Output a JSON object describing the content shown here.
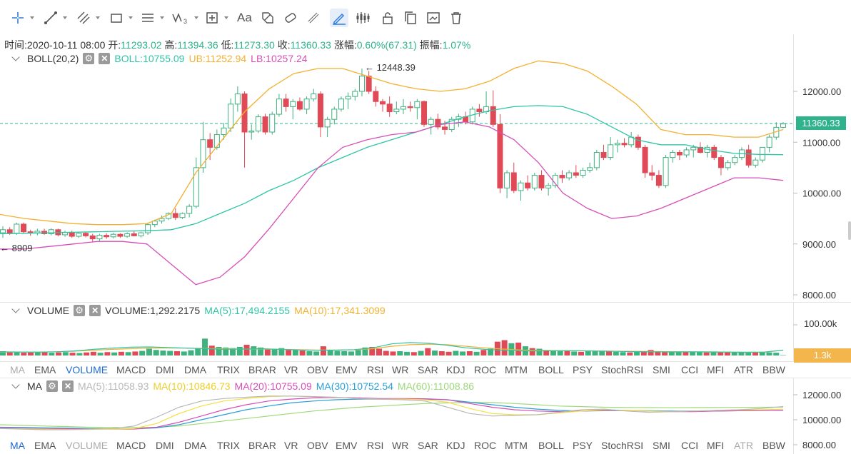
{
  "toolbar": {
    "tools": [
      {
        "name": "crosshair-tool-icon",
        "caret": true
      },
      {
        "name": "trend-line-tool-icon",
        "caret": true
      },
      {
        "name": "fib-tool-icon",
        "caret": true
      },
      {
        "name": "rectangle-tool-icon",
        "caret": true
      },
      {
        "name": "horizontal-lines-tool-icon",
        "caret": true
      },
      {
        "name": "wave-tool-icon",
        "caret": true
      },
      {
        "name": "measure-tool-icon",
        "caret": true
      },
      {
        "name": "text-tool-icon",
        "caret": false
      },
      {
        "name": "pattern-tool-icon",
        "caret": false
      },
      {
        "name": "magnet-tool-icon",
        "caret": false
      },
      {
        "name": "ruler-tool-icon",
        "caret": false
      },
      {
        "name": "draw-tool-icon",
        "caret": false
      },
      {
        "name": "chart-type-icon",
        "caret": false
      },
      {
        "name": "lock-icon",
        "caret": false
      },
      {
        "name": "copy-icon",
        "caret": false
      },
      {
        "name": "screenshot-icon",
        "caret": false
      },
      {
        "name": "delete-icon",
        "caret": false
      }
    ],
    "text_tool_label": "Aa"
  },
  "ohlc": {
    "time_label": "时间:",
    "time": "2020-10-11 08:00",
    "open_label": "开:",
    "open": "11293.02",
    "high_label": "高:",
    "high": "11394.36",
    "low_label": "低:",
    "low": "11273.30",
    "close_label": "收:",
    "close": "11360.33",
    "change_label": "涨幅:",
    "change": "0.60%(67.31)",
    "amp_label": "振幅:",
    "amp": "1.07%"
  },
  "boll_pane": {
    "name": "BOLL(20,2)",
    "boll": "BOLL:10755.09",
    "ub": "UB:11252.94",
    "lb": "LB:10257.24",
    "colors": {
      "boll": "#2fc4a6",
      "ub": "#f2b130",
      "lb": "#d64fb8"
    },
    "axis_ticks": [
      "12000.00",
      "11000.00",
      "10000.00",
      "9000.00",
      "8000.00"
    ],
    "high_marker": "12448.39",
    "low_marker": "8909",
    "last_price": "11360.33"
  },
  "volume_pane": {
    "name": "VOLUME",
    "volume": "VOLUME:1,292.2175",
    "ma5": "MA(5):17,494.2155",
    "ma10": "MA(10):17,341.3099",
    "colors": {
      "ma5": "#2fc4a6",
      "ma10": "#f2b130"
    },
    "axis_tick": "100.00k",
    "current": "1.3k"
  },
  "indicator_tabs_1": {
    "items": [
      "MA",
      "EMA",
      "VOLUME",
      "MACD",
      "DMI",
      "DMA",
      "TRIX",
      "BRAR",
      "VR",
      "OBV",
      "EMV",
      "RSI",
      "WR",
      "SAR",
      "KDJ",
      "ROC",
      "MTM",
      "BOLL",
      "PSY",
      "StochRSI",
      "SMI",
      "CCI",
      "MFI",
      "ATR",
      "BBW"
    ],
    "active": "VOLUME"
  },
  "ma_pane": {
    "name": "MA",
    "ma5": "MA(5):11058.93",
    "ma10": "MA(10):10846.73",
    "ma20": "MA(20):10755.09",
    "ma30": "MA(30):10752.54",
    "ma60": "MA(60):11008.86",
    "colors": {
      "ma5": "#b8b8b8",
      "ma10": "#f5e040",
      "ma20": "#d64fb8",
      "ma30": "#2a9fd6",
      "ma60": "#9ed97a"
    },
    "axis_ticks": [
      "12000.00",
      "10000.00",
      "8000.00"
    ]
  },
  "indicator_tabs_2": {
    "items": [
      "MA",
      "EMA",
      "VOLUME",
      "MACD",
      "DMI",
      "DMA",
      "TRIX",
      "BRAR",
      "VR",
      "OBV",
      "EMV",
      "RSI",
      "WR",
      "SAR",
      "KDJ",
      "ROC",
      "MTM",
      "BOLL",
      "PSY",
      "StochRSI",
      "SMI",
      "CCI",
      "MFI",
      "ATR",
      "BBW"
    ],
    "active": "MA"
  },
  "chart_data": {
    "type": "candlestick",
    "price_axis": {
      "min": 8000,
      "max": 12000,
      "ticks": [
        12000,
        11000,
        10000,
        9000,
        8000
      ]
    },
    "candles_ohlc": [
      [
        9220,
        9350,
        9120,
        9280
      ],
      [
        9280,
        9330,
        9180,
        9210
      ],
      [
        9210,
        9420,
        9180,
        9390
      ],
      [
        9390,
        9420,
        9200,
        9240
      ],
      [
        9240,
        9280,
        9160,
        9220
      ],
      [
        9220,
        9300,
        9170,
        9250
      ],
      [
        9250,
        9300,
        9180,
        9200
      ],
      [
        9200,
        9310,
        9170,
        9280
      ],
      [
        9280,
        9300,
        9150,
        9180
      ],
      [
        9180,
        9260,
        9140,
        9230
      ],
      [
        9230,
        9260,
        9120,
        9150
      ],
      [
        9150,
        9240,
        9120,
        9210
      ],
      [
        9210,
        9240,
        9130,
        9160
      ],
      [
        9160,
        9200,
        9040,
        9100
      ],
      [
        9100,
        9200,
        9060,
        9170
      ],
      [
        9170,
        9210,
        9100,
        9140
      ],
      [
        9140,
        9220,
        9110,
        9190
      ],
      [
        9190,
        9210,
        9120,
        9150
      ],
      [
        9150,
        9230,
        9120,
        9200
      ],
      [
        9200,
        9260,
        9150,
        9160
      ],
      [
        9160,
        9240,
        9130,
        9220
      ],
      [
        9220,
        9420,
        9180,
        9380
      ],
      [
        9380,
        9480,
        9330,
        9450
      ],
      [
        9450,
        9560,
        9400,
        9500
      ],
      [
        9500,
        9620,
        9470,
        9600
      ],
      [
        9600,
        9700,
        9470,
        9520
      ],
      [
        9520,
        9620,
        9490,
        9600
      ],
      [
        9600,
        9780,
        9520,
        9740
      ],
      [
        9740,
        10700,
        9700,
        10500
      ],
      [
        10500,
        11400,
        10400,
        11050
      ],
      [
        11050,
        11180,
        10650,
        10900
      ],
      [
        10900,
        11250,
        10850,
        11150
      ],
      [
        11150,
        11380,
        11050,
        11280
      ],
      [
        11280,
        11860,
        11200,
        11750
      ],
      [
        11750,
        12100,
        11600,
        11950
      ],
      [
        11950,
        12000,
        10500,
        11200
      ],
      [
        11200,
        11350,
        11050,
        11220
      ],
      [
        11220,
        11550,
        11180,
        11500
      ],
      [
        11500,
        11560,
        11150,
        11200
      ],
      [
        11200,
        11600,
        11150,
        11550
      ],
      [
        11550,
        11950,
        11500,
        11850
      ],
      [
        11850,
        11950,
        11600,
        11700
      ],
      [
        11700,
        11850,
        11450,
        11800
      ],
      [
        11800,
        11880,
        11620,
        11650
      ],
      [
        11650,
        11900,
        11550,
        11850
      ],
      [
        11850,
        12050,
        11800,
        11950
      ],
      [
        11950,
        12000,
        11100,
        11300
      ],
      [
        11300,
        11500,
        11100,
        11450
      ],
      [
        11450,
        11700,
        11350,
        11650
      ],
      [
        11650,
        11900,
        11600,
        11850
      ],
      [
        11850,
        11980,
        11650,
        11900
      ],
      [
        11900,
        12050,
        11820,
        12000
      ],
      [
        12000,
        12448,
        11900,
        12300
      ],
      [
        12300,
        12400,
        11950,
        12000
      ],
      [
        12000,
        12100,
        11700,
        11800
      ],
      [
        11800,
        11850,
        11600,
        11750
      ],
      [
        11750,
        11900,
        11500,
        11600
      ],
      [
        11600,
        11800,
        11550,
        11650
      ],
      [
        11650,
        11850,
        11550,
        11700
      ],
      [
        11700,
        11800,
        11600,
        11680
      ],
      [
        11680,
        11850,
        11450,
        11800
      ],
      [
        11800,
        11820,
        11300,
        11350
      ],
      [
        11350,
        11500,
        11150,
        11450
      ],
      [
        11450,
        11560,
        11250,
        11300
      ],
      [
        11300,
        11420,
        11150,
        11250
      ],
      [
        11250,
        11500,
        11200,
        11450
      ],
      [
        11450,
        11560,
        11300,
        11500
      ],
      [
        11500,
        11600,
        11350,
        11400
      ],
      [
        11400,
        11700,
        11350,
        11650
      ],
      [
        11650,
        11750,
        11500,
        11600
      ],
      [
        11600,
        12000,
        11550,
        11700
      ],
      [
        11700,
        12020,
        11300,
        11350
      ],
      [
        11350,
        11550,
        10000,
        10100
      ],
      [
        10100,
        10450,
        9900,
        10400
      ],
      [
        10400,
        10600,
        10000,
        10050
      ],
      [
        10050,
        10250,
        9850,
        10200
      ],
      [
        10200,
        10350,
        10050,
        10100
      ],
      [
        10100,
        10400,
        10050,
        10350
      ],
      [
        10350,
        10450,
        10050,
        10100
      ],
      [
        10100,
        10200,
        9950,
        10150
      ],
      [
        10150,
        10400,
        10100,
        10350
      ],
      [
        10350,
        10450,
        10200,
        10300
      ],
      [
        10300,
        10450,
        10250,
        10400
      ],
      [
        10400,
        10550,
        10300,
        10350
      ],
      [
        10350,
        10500,
        10300,
        10450
      ],
      [
        10450,
        10600,
        10400,
        10500
      ],
      [
        10500,
        10850,
        10450,
        10800
      ],
      [
        10800,
        10950,
        10650,
        10700
      ],
      [
        10700,
        11100,
        10650,
        10950
      ],
      [
        10950,
        11050,
        10800,
        10980
      ],
      [
        10980,
        11080,
        10900,
        10950
      ],
      [
        10950,
        11200,
        10900,
        11100
      ],
      [
        11100,
        11150,
        10850,
        10900
      ],
      [
        10900,
        10950,
        10300,
        10400
      ],
      [
        10400,
        10550,
        10250,
        10350
      ],
      [
        10350,
        10450,
        10100,
        10150
      ],
      [
        10150,
        10750,
        10100,
        10700
      ],
      [
        10700,
        10850,
        10600,
        10800
      ],
      [
        10800,
        10850,
        10650,
        10750
      ],
      [
        10750,
        10900,
        10700,
        10850
      ],
      [
        10850,
        10950,
        10700,
        10900
      ],
      [
        10900,
        11000,
        10780,
        10800
      ],
      [
        10800,
        10950,
        10700,
        10900
      ],
      [
        10900,
        10950,
        10650,
        10700
      ],
      [
        10700,
        10750,
        10350,
        10500
      ],
      [
        10500,
        10650,
        10450,
        10600
      ],
      [
        10600,
        10750,
        10550,
        10700
      ],
      [
        10700,
        10900,
        10650,
        10850
      ],
      [
        10850,
        10950,
        10500,
        10550
      ],
      [
        10550,
        10700,
        10500,
        10650
      ],
      [
        10650,
        10900,
        10600,
        10900
      ],
      [
        10900,
        11150,
        10800,
        11100
      ],
      [
        11100,
        11394,
        11050,
        11293
      ],
      [
        11293,
        11394,
        11273,
        11360
      ]
    ],
    "boll_mid": [
      9200,
      9210,
      9220,
      9230,
      9240,
      9250,
      9260,
      9280,
      9400,
      9600,
      9800,
      10050,
      10250,
      10500,
      10700,
      10900,
      11050,
      11200,
      11350,
      11500,
      11620,
      11700,
      11720,
      11700,
      11550,
      11300,
      11050,
      10950,
      10950,
      10850,
      10780,
      10760,
      10755
    ],
    "boll_up": [
      9580,
      9500,
      9450,
      9400,
      9380,
      9380,
      9400,
      9600,
      10400,
      11000,
      11600,
      12050,
      12350,
      12450,
      12450,
      12300,
      12150,
      12050,
      12000,
      12050,
      12200,
      12450,
      12600,
      12550,
      12400,
      12100,
      11750,
      11250,
      11150,
      11150,
      11100,
      11100,
      11250
    ],
    "boll_low": [
      8900,
      8900,
      8950,
      9000,
      9050,
      9050,
      9000,
      8600,
      8200,
      8350,
      8750,
      9300,
      9900,
      10500,
      10900,
      11050,
      11150,
      11200,
      11350,
      11400,
      11300,
      11050,
      10600,
      10000,
      9700,
      9500,
      9550,
      9700,
      9900,
      10100,
      10300,
      10300,
      10250
    ],
    "volume_axis": {
      "max": 100000,
      "tick": 100000
    },
    "volume_values": [
      14000,
      12000,
      11000,
      9000,
      10000,
      11000,
      12000,
      9000,
      10000,
      11000,
      9000,
      8000,
      10000,
      12000,
      9000,
      11000,
      10000,
      12000,
      11000,
      13000,
      15000,
      22000,
      18000,
      16000,
      15000,
      14000,
      13000,
      17000,
      24000,
      55000,
      32000,
      28000,
      26000,
      24000,
      28000,
      35000,
      30000,
      26000,
      22000,
      20000,
      24000,
      18000,
      20000,
      16000,
      14000,
      13000,
      30000,
      17000,
      15000,
      14000,
      13000,
      18000,
      26000,
      28000,
      22000,
      15000,
      13000,
      14000,
      12000,
      11000,
      15000,
      24000,
      16000,
      14000,
      12000,
      15000,
      13000,
      14000,
      12000,
      18000,
      22000,
      45000,
      50000,
      40000,
      42000,
      30000,
      24000,
      22000,
      18000,
      15000,
      14000,
      16000,
      13000,
      12000,
      14000,
      16000,
      14000,
      13000,
      12000,
      11000,
      10000,
      12000,
      13000,
      18000,
      12000,
      11000,
      12000,
      13000,
      12000,
      11000,
      12000,
      10000,
      13000,
      12000,
      11000,
      10000,
      11000,
      9000,
      10000,
      12000,
      10000,
      9000,
      1292
    ],
    "volume_ma5": [
      12000,
      11500,
      11000,
      12000,
      15000,
      20000,
      24000,
      27000,
      28000,
      26000,
      24000,
      22000,
      20000,
      21000,
      22000,
      20000,
      18000,
      17000,
      17500,
      19000,
      25000,
      38000,
      42000,
      40000,
      33000,
      25000,
      20000,
      17000,
      15000,
      15000,
      15500,
      15500,
      14500,
      13500,
      12500,
      12000,
      11500,
      12000,
      11500,
      11000,
      10500,
      11000,
      17494
    ],
    "volume_ma10": [
      11000,
      11200,
      11500,
      12000,
      14000,
      17000,
      20000,
      22000,
      24000,
      24500,
      24000,
      23000,
      22000,
      21000,
      20500,
      20000,
      19000,
      18000,
      18000,
      18500,
      22000,
      30000,
      35000,
      37000,
      35000,
      30000,
      25000,
      21000,
      18000,
      16500,
      16000,
      15500,
      15000,
      14000,
      13500,
      13000,
      12500,
      12000,
      11800,
      11500,
      11000,
      11500,
      17341
    ],
    "ma_axis": {
      "min": 8000,
      "max": 12000,
      "ticks": [
        12000,
        10000,
        8000
      ]
    },
    "ma5_line": [
      9300,
      9250,
      9200,
      9200,
      9250,
      9300,
      9500,
      10200,
      11000,
      11500,
      11700,
      11800,
      11900,
      11900,
      11850,
      11800,
      11700,
      11650,
      11600,
      11500,
      11000,
      10500,
      10300,
      10350,
      10400,
      10600,
      10800,
      10850,
      10700,
      10600,
      10650,
      10700,
      10750,
      10800,
      10900,
      11059
    ],
    "ma10_line": [
      9300,
      9280,
      9250,
      9220,
      9220,
      9250,
      9300,
      9700,
      10500,
      11100,
      11500,
      11700,
      11850,
      11900,
      11850,
      11800,
      11700,
      11650,
      11650,
      11600,
      11400,
      10900,
      10500,
      10400,
      10400,
      10550,
      10700,
      10800,
      10750,
      10700,
      10650,
      10700,
      10750,
      10780,
      10800,
      10847
    ],
    "ma20_line": [
      9350,
      9320,
      9300,
      9280,
      9260,
      9250,
      9260,
      9400,
      9800,
      10300,
      10800,
      11200,
      11500,
      11650,
      11750,
      11780,
      11750,
      11700,
      11700,
      11680,
      11600,
      11300,
      11000,
      10800,
      10700,
      10650,
      10700,
      10750,
      10750,
      10700,
      10650,
      10650,
      10700,
      10720,
      10740,
      10755
    ],
    "ma30_line": [
      9400,
      9380,
      9350,
      9320,
      9300,
      9280,
      9270,
      9350,
      9600,
      10000,
      10400,
      10800,
      11100,
      11350,
      11500,
      11600,
      11650,
      11650,
      11650,
      11650,
      11600,
      11400,
      11200,
      11000,
      10850,
      10750,
      10700,
      10720,
      10730,
      10720,
      10700,
      10690,
      10700,
      10720,
      10740,
      10753
    ],
    "ma60_line": [
      9600,
      9550,
      9500,
      9450,
      9400,
      9380,
      9370,
      9400,
      9500,
      9700,
      9900,
      10100,
      10300,
      10500,
      10700,
      10850,
      11000,
      11100,
      11200,
      11300,
      11350,
      11400,
      11380,
      11300,
      11200,
      11100,
      11050,
      11000,
      10980,
      10970,
      10960,
      10970,
      10980,
      10990,
      11000,
      11009
    ]
  }
}
